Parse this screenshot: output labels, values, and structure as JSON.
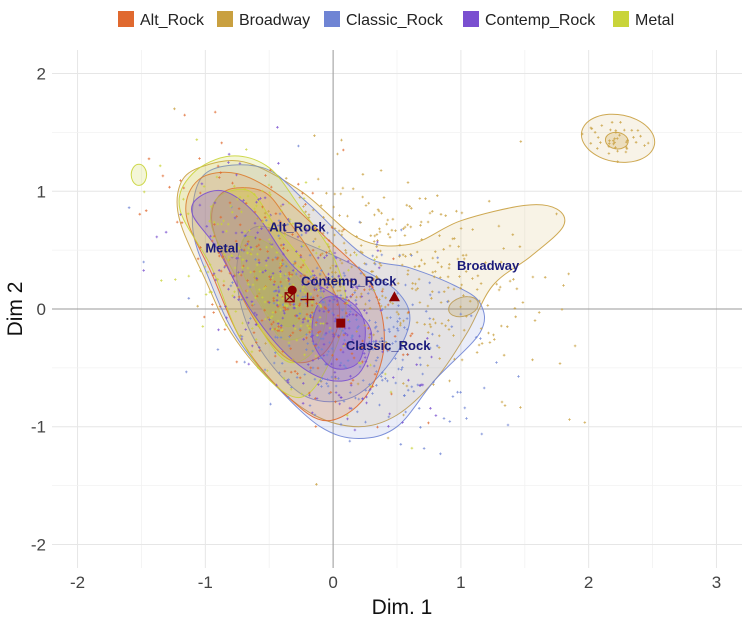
{
  "chart_data": {
    "type": "scatter",
    "xlabel": "Dim. 1",
    "ylabel": "Dim 2",
    "xlim": [
      -2.2,
      3.2
    ],
    "ylim": [
      -2.2,
      2.2
    ],
    "x_ticks": [
      -2,
      -1,
      0,
      1,
      2,
      3
    ],
    "y_ticks": [
      -2,
      -1,
      0,
      1,
      2
    ],
    "x_tick_labels": [
      "-2",
      "-1",
      "0",
      "1",
      "2",
      "3"
    ],
    "y_tick_labels": [
      "-2",
      "-1",
      "0",
      "1",
      "2"
    ],
    "grid": true,
    "legend_position": "top",
    "series": [
      {
        "name": "Alt_Rock",
        "color": "#E0692F",
        "centroid": [
          -0.32,
          0.16
        ],
        "marker": "circle",
        "label": "Alt_Rock",
        "label_pos": [
          -0.5,
          0.66
        ]
      },
      {
        "name": "Broadway",
        "color": "#C9A040",
        "centroid": [
          0.48,
          0.1
        ],
        "marker": "triangle",
        "label": "Broadway",
        "label_pos": [
          0.97,
          0.33
        ]
      },
      {
        "name": "Classic_Rock",
        "color": "#6F84D4",
        "centroid": [
          0.06,
          -0.12
        ],
        "marker": "square",
        "label": "Classic_Rock",
        "label_pos": [
          0.1,
          -0.35
        ]
      },
      {
        "name": "Contemp_Rock",
        "color": "#7A4FD0",
        "centroid": [
          -0.34,
          0.1
        ],
        "marker": "boxed-x",
        "label": "Contemp_Rock",
        "label_pos": [
          -0.25,
          0.2
        ]
      },
      {
        "name": "Metal",
        "color": "#C9D43A",
        "centroid": [
          -0.2,
          0.08
        ],
        "marker": "cross",
        "label": "Metal",
        "label_pos": [
          -1.0,
          0.48
        ]
      }
    ],
    "centroid_color": "#8B0000"
  }
}
